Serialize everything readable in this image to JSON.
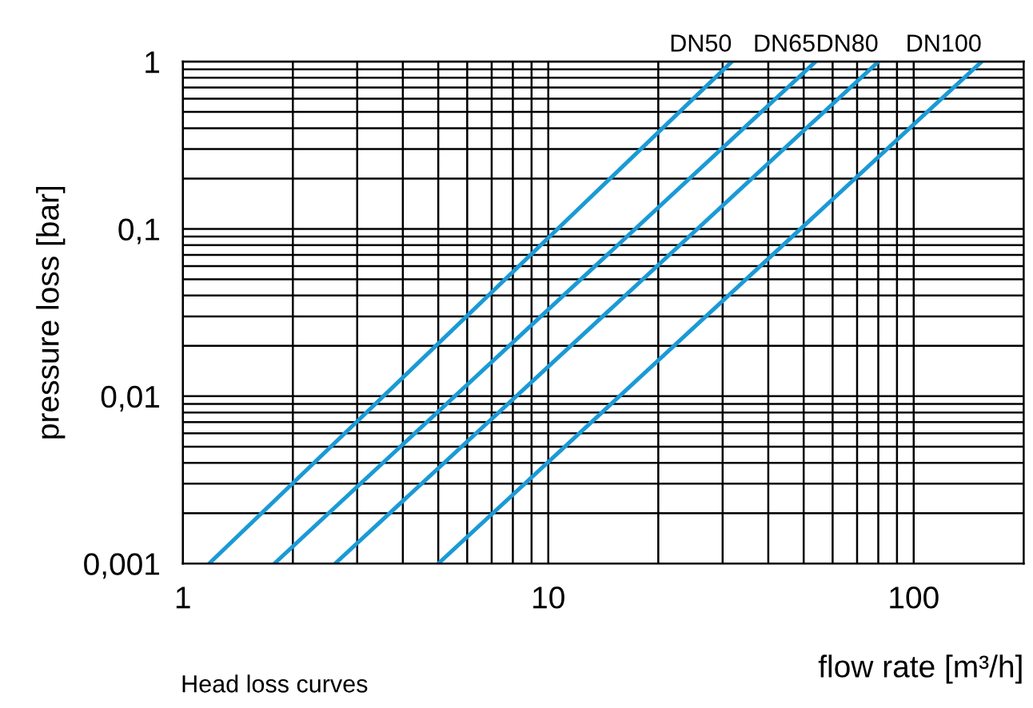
{
  "chart_data": {
    "type": "line",
    "xlabel": "flow rate [m³/h]",
    "ylabel": "pressure loss [bar]",
    "log": "xy",
    "grid": true,
    "legend": false,
    "marker": "none",
    "line_style": "solid",
    "xlim": [
      1,
      200
    ],
    "ylim": [
      0.001,
      1
    ],
    "xticks": [
      1,
      {
        "value": 2,
        "label": null
      },
      {
        "value": 3,
        "label": null
      },
      {
        "value": 4,
        "label": null
      },
      {
        "value": 5,
        "label": null
      },
      {
        "value": 6,
        "label": null
      },
      {
        "value": 7,
        "label": null
      },
      {
        "value": 8,
        "label": null
      },
      {
        "value": 9,
        "label": null
      },
      10,
      {
        "value": 20,
        "label": null
      },
      {
        "value": 30,
        "label": null
      },
      {
        "value": 40,
        "label": null
      },
      {
        "value": 50,
        "label": null
      },
      {
        "value": 60,
        "label": null
      },
      {
        "value": 70,
        "label": null
      },
      {
        "value": 80,
        "label": null
      },
      {
        "value": 90,
        "label": null
      },
      100
    ],
    "yticks": [
      {
        "value": 0.001,
        "label": "0,001"
      },
      {
        "value": 0.002,
        "label": null
      },
      {
        "value": 0.003,
        "label": null
      },
      {
        "value": 0.004,
        "label": null
      },
      {
        "value": 0.005,
        "label": null
      },
      {
        "value": 0.006,
        "label": null
      },
      {
        "value": 0.007,
        "label": null
      },
      {
        "value": 0.008,
        "label": null
      },
      {
        "value": 0.009,
        "label": null
      },
      {
        "value": 0.01,
        "label": "0,01"
      },
      {
        "value": 0.02,
        "label": null
      },
      {
        "value": 0.03,
        "label": null
      },
      {
        "value": 0.04,
        "label": null
      },
      {
        "value": 0.05,
        "label": null
      },
      {
        "value": 0.06,
        "label": null
      },
      {
        "value": 0.07,
        "label": null
      },
      {
        "value": 0.08,
        "label": null
      },
      {
        "value": 0.09,
        "label": null
      },
      {
        "value": 0.1,
        "label": "0,1"
      },
      {
        "value": 0.2,
        "label": null
      },
      {
        "value": 0.3,
        "label": null
      },
      {
        "value": 0.4,
        "label": null
      },
      {
        "value": 0.5,
        "label": null
      },
      {
        "value": 0.6,
        "label": null
      },
      {
        "value": 0.7,
        "label": null
      },
      {
        "value": 0.8,
        "label": null
      },
      {
        "value": 0.9,
        "label": null
      },
      1
    ],
    "series": [
      {
        "name": "DN50",
        "color": "#1a9ad6",
        "x": [
          1.18,
          31.8
        ],
        "values": [
          0.001,
          1
        ]
      },
      {
        "name": "DN65",
        "color": "#1a9ad6",
        "x": [
          1.78,
          53.9
        ],
        "values": [
          0.001,
          1
        ]
      },
      {
        "name": "DN80",
        "color": "#1a9ad6",
        "x": [
          2.61,
          80.1
        ],
        "values": [
          0.001,
          1
        ]
      },
      {
        "name": "DN100",
        "color": "#1a9ad6",
        "x": [
          5.0,
          153.5
        ],
        "values": [
          0.001,
          1
        ]
      }
    ],
    "annotations": [
      "Head loss curves"
    ]
  }
}
